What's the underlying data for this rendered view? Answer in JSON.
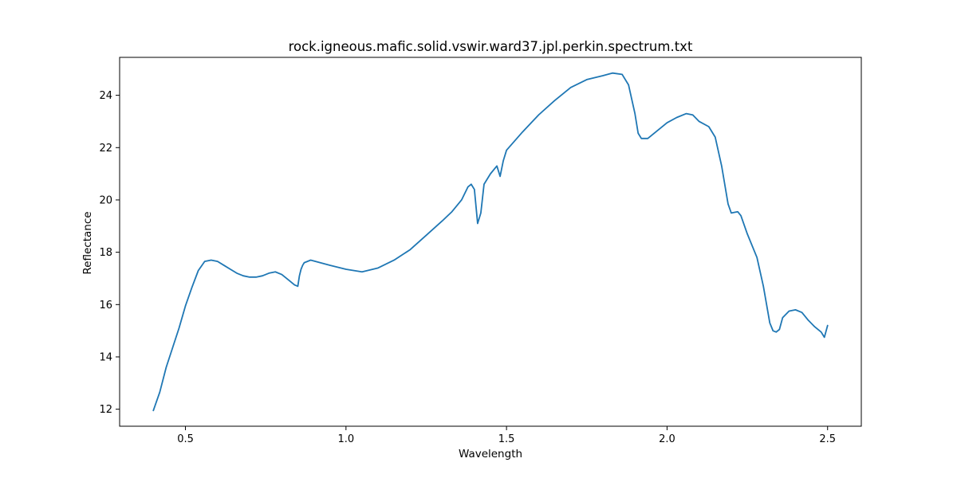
{
  "chart_data": {
    "type": "line",
    "title": "rock.igneous.mafic.solid.vswir.ward37.jpl.perkin.spectrum.txt",
    "xlabel": "Wavelength",
    "ylabel": "Reflectance",
    "xlim": [
      0.295,
      2.605
    ],
    "ylim": [
      11.35,
      25.45
    ],
    "xticks": [
      0.5,
      1.0,
      1.5,
      2.0,
      2.5
    ],
    "xtick_labels": [
      "0.5",
      "1.0",
      "1.5",
      "2.0",
      "2.5"
    ],
    "yticks": [
      12,
      14,
      16,
      18,
      20,
      22,
      24
    ],
    "ytick_labels": [
      "12",
      "14",
      "16",
      "18",
      "20",
      "22",
      "24"
    ],
    "grid": false,
    "series": [
      {
        "color": "#1f77b4",
        "x": [
          0.4,
          0.42,
          0.44,
          0.46,
          0.48,
          0.5,
          0.52,
          0.54,
          0.56,
          0.58,
          0.6,
          0.62,
          0.64,
          0.66,
          0.68,
          0.7,
          0.72,
          0.74,
          0.76,
          0.78,
          0.8,
          0.82,
          0.84,
          0.85,
          0.855,
          0.86,
          0.865,
          0.87,
          0.89,
          0.92,
          0.95,
          1.0,
          1.05,
          1.1,
          1.15,
          1.2,
          1.25,
          1.3,
          1.33,
          1.36,
          1.38,
          1.39,
          1.4,
          1.41,
          1.42,
          1.43,
          1.45,
          1.47,
          1.48,
          1.49,
          1.5,
          1.55,
          1.6,
          1.65,
          1.7,
          1.75,
          1.8,
          1.83,
          1.86,
          1.88,
          1.9,
          1.91,
          1.92,
          1.94,
          1.97,
          2.0,
          2.03,
          2.06,
          2.08,
          2.1,
          2.13,
          2.15,
          2.17,
          2.19,
          2.2,
          2.22,
          2.23,
          2.25,
          2.28,
          2.3,
          2.32,
          2.33,
          2.34,
          2.35,
          2.36,
          2.38,
          2.4,
          2.42,
          2.44,
          2.46,
          2.48,
          2.49,
          2.5
        ],
        "y": [
          11.95,
          12.65,
          13.6,
          14.35,
          15.1,
          15.95,
          16.65,
          17.3,
          17.65,
          17.7,
          17.65,
          17.5,
          17.35,
          17.2,
          17.1,
          17.05,
          17.05,
          17.1,
          17.2,
          17.25,
          17.15,
          16.95,
          16.75,
          16.7,
          17.1,
          17.35,
          17.5,
          17.6,
          17.7,
          17.6,
          17.5,
          17.35,
          17.25,
          17.4,
          17.7,
          18.1,
          18.65,
          19.2,
          19.55,
          20.0,
          20.5,
          20.6,
          20.4,
          19.1,
          19.5,
          20.6,
          21.0,
          21.3,
          20.9,
          21.5,
          21.9,
          22.6,
          23.25,
          23.8,
          24.3,
          24.6,
          24.75,
          24.85,
          24.8,
          24.4,
          23.3,
          22.55,
          22.35,
          22.35,
          22.65,
          22.95,
          23.15,
          23.3,
          23.25,
          23.0,
          22.8,
          22.4,
          21.3,
          19.85,
          19.5,
          19.55,
          19.4,
          18.7,
          17.8,
          16.7,
          15.3,
          15.0,
          14.95,
          15.05,
          15.5,
          15.75,
          15.8,
          15.7,
          15.4,
          15.15,
          14.95,
          14.75,
          15.2
        ]
      }
    ]
  }
}
